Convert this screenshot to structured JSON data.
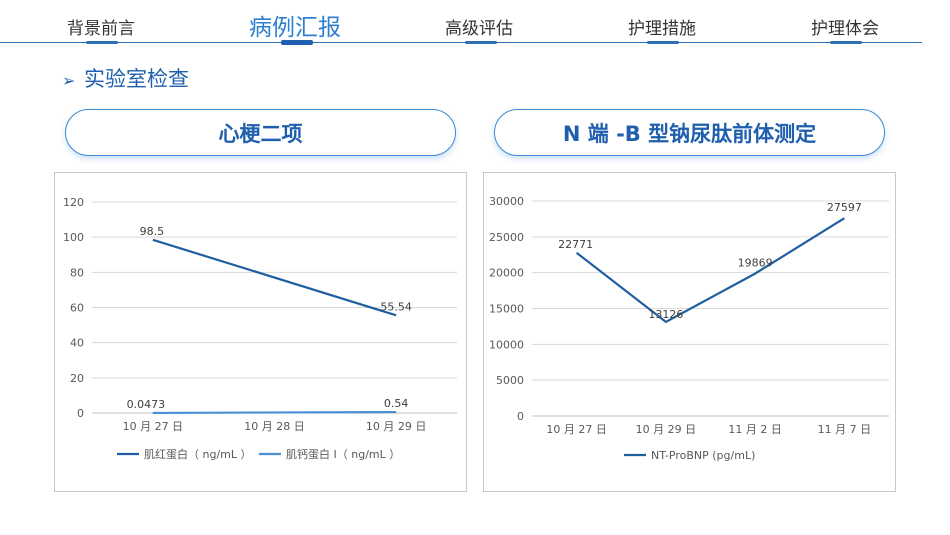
{
  "nav": {
    "tabs": [
      {
        "label": "背景前言",
        "active": false
      },
      {
        "label": "病例汇报",
        "active": true
      },
      {
        "label": "高级评估",
        "active": false
      },
      {
        "label": "护理措施",
        "active": false
      },
      {
        "label": "护理体会",
        "active": false
      }
    ]
  },
  "section": {
    "arrow": "➢",
    "title": "实验室检查"
  },
  "pills": {
    "left": "心梗二项",
    "right": "N 端 -B 型钠尿肽前体测定"
  },
  "colors": {
    "accent": "#1f5fae",
    "series1": "#1f5fa0",
    "series2": "#4a8fd4",
    "grid": "#d9d9d9"
  },
  "chart_data": [
    {
      "type": "line",
      "categories": [
        "10 月 27 日",
        "10 月 28 日",
        "10 月 29 日"
      ],
      "ylim": [
        0,
        120
      ],
      "yticks": [
        0,
        20,
        40,
        60,
        80,
        100,
        120
      ],
      "grid": true,
      "legend": "bottom",
      "series": [
        {
          "name": "肌红蛋白（ ng/mL ）",
          "color": "#1f5fa0",
          "points": [
            {
              "x": "10 月 27 日",
              "y": 98.5,
              "label": "98.5"
            },
            {
              "x": "10 月 29 日",
              "y": 55.54,
              "label": "55.54"
            }
          ]
        },
        {
          "name": "肌钙蛋白 I（ ng/mL ）",
          "color": "#4a8fd4",
          "points": [
            {
              "x": "10 月 27 日",
              "y": 0.0473,
              "label": "0.0473"
            },
            {
              "x": "10 月 29 日",
              "y": 0.54,
              "label": "0.54"
            }
          ]
        }
      ]
    },
    {
      "type": "line",
      "categories": [
        "10 月 27 日",
        "10 月 29 日",
        "11 月 2 日",
        "11 月 7 日"
      ],
      "ylim": [
        0,
        30000
      ],
      "yticks": [
        0,
        5000,
        10000,
        15000,
        20000,
        25000,
        30000
      ],
      "grid": true,
      "legend": "bottom",
      "series": [
        {
          "name": "NT-ProBNP (pg/mL)",
          "color": "#1f5fa0",
          "points": [
            {
              "x": "10 月 27 日",
              "y": 22771,
              "label": "22771"
            },
            {
              "x": "10 月 29 日",
              "y": 13126,
              "label": "13126"
            },
            {
              "x": "11 月 2 日",
              "y": 19869,
              "label": "19869"
            },
            {
              "x": "11 月 7 日",
              "y": 27597,
              "label": "27597"
            }
          ]
        }
      ]
    }
  ]
}
